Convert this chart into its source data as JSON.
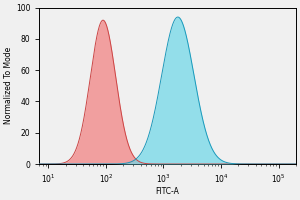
{
  "xlabel": "FITC-A",
  "ylabel": "Normalized To Mode",
  "xlim": [
    7,
    200000
  ],
  "ylim": [
    0,
    100
  ],
  "yticks": [
    0,
    20,
    40,
    60,
    80,
    100
  ],
  "red_peak_log10": 1.95,
  "red_sigma_log10": 0.22,
  "red_peak_height": 92,
  "blue_peak_log10": 3.25,
  "blue_sigma_log10": 0.28,
  "blue_peak_height": 94,
  "red_fill_color": "#F28080",
  "red_edge_color": "#CC4444",
  "blue_fill_color": "#70D8E8",
  "blue_edge_color": "#1A99BB",
  "overlap_color": "#8899AA",
  "background_color": "#F0F0F0",
  "alpha_red": 0.72,
  "alpha_blue": 0.72,
  "label_fontsize": 5.5,
  "tick_fontsize": 5.5
}
